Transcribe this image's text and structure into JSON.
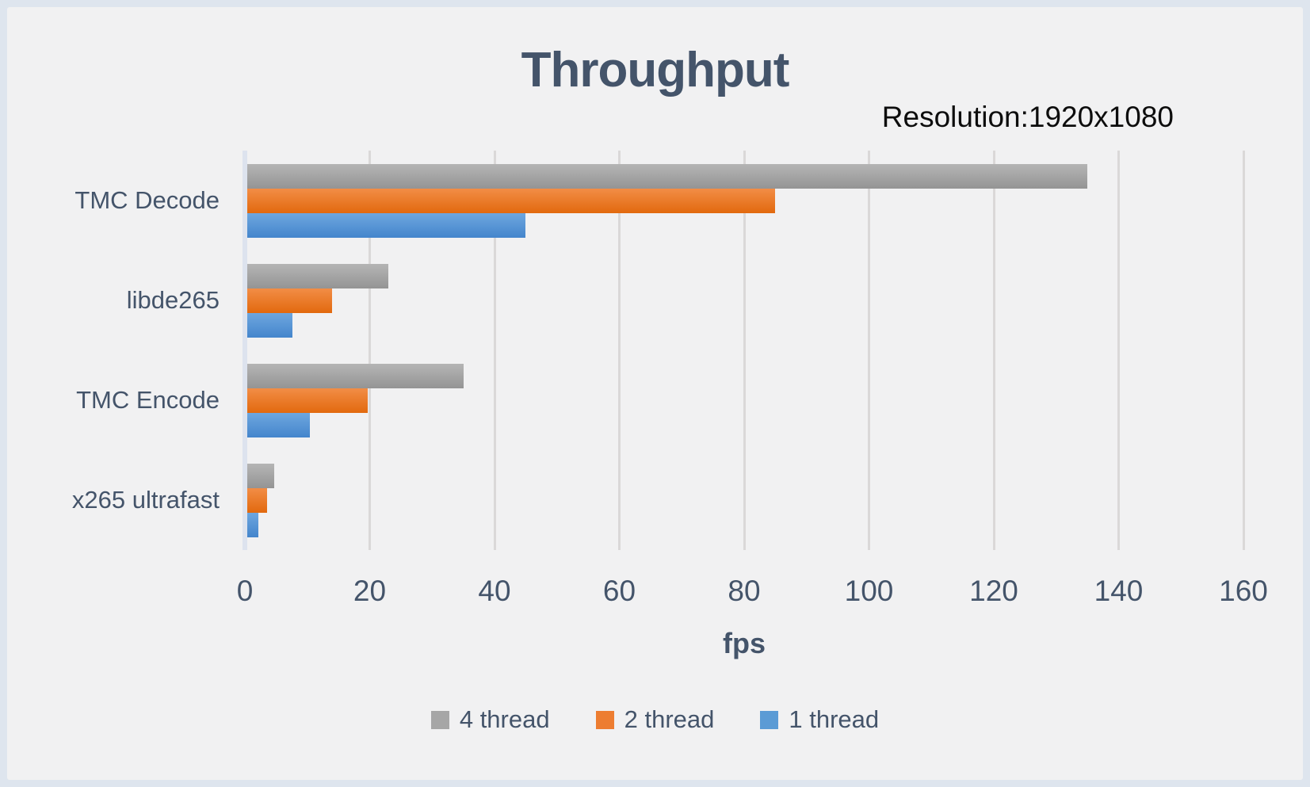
{
  "frame": {
    "border_color": "#dee5ee",
    "surface_color": "#f1f1f2",
    "text_color": "#44546a"
  },
  "chart_data": {
    "type": "bar",
    "orientation": "horizontal",
    "title": "Throughput",
    "annotation": "Resolution:1920x1080",
    "xlabel": "fps",
    "categories": [
      "TMC Decode",
      "libde265",
      "TMC Encode",
      "x265 ultrafast"
    ],
    "series": [
      {
        "name": "4 thread",
        "color": "#a6a6a6",
        "gradient": [
          "#b5b5b5",
          "#949494"
        ],
        "values": [
          135,
          23,
          35,
          4.7
        ]
      },
      {
        "name": "2 thread",
        "color": "#ed7d31",
        "gradient": [
          "#f28d46",
          "#e2690e"
        ],
        "values": [
          85,
          14,
          19.7,
          3.5
        ]
      },
      {
        "name": "1 thread",
        "color": "#5b9bd5",
        "gradient": [
          "#6ea7df",
          "#4485cc"
        ],
        "values": [
          45,
          7.6,
          10.4,
          2.2
        ]
      }
    ],
    "xlim": [
      0,
      160
    ],
    "xticks": [
      0,
      20,
      40,
      60,
      80,
      100,
      120,
      140,
      160
    ],
    "grid": true,
    "gridline_color": "#dad8d8",
    "zero_line_color": "#dde3ee",
    "legend_position": "bottom"
  }
}
